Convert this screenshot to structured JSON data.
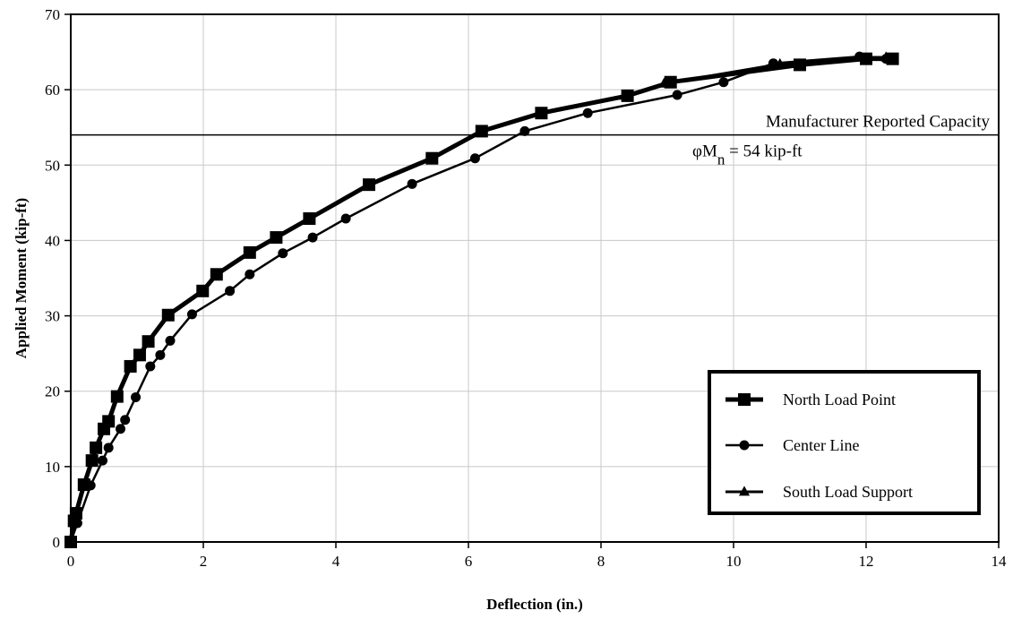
{
  "chart_data": {
    "type": "line",
    "xlabel": "Deflection (in.)",
    "ylabel": "Applied Moment (kip-ft)",
    "xlim": [
      0,
      14
    ],
    "ylim": [
      0,
      70
    ],
    "xticks": [
      "0",
      "2",
      "4",
      "6",
      "8",
      "10",
      "12",
      "14"
    ],
    "yticks": [
      "0",
      "10",
      "20",
      "30",
      "40",
      "50",
      "60",
      "70"
    ],
    "grid": true,
    "legend_position": "bottom-right",
    "series": [
      {
        "name": "North Load Point",
        "marker": "square",
        "x": [
          0,
          0.05,
          0.08,
          0.2,
          0.32,
          0.38,
          0.5,
          0.57,
          0.7,
          0.9,
          1.04,
          1.17,
          1.47,
          1.99,
          2.2,
          2.7,
          3.1,
          3.6,
          4.5,
          5.45,
          6.2,
          7.1,
          8.4,
          9.05,
          11.0,
          12.0,
          12.4
        ],
        "y": [
          0,
          2.8,
          3.8,
          7.6,
          10.8,
          12.5,
          15.0,
          16.0,
          19.3,
          23.3,
          24.8,
          26.6,
          30.1,
          33.3,
          35.5,
          38.4,
          40.4,
          42.9,
          47.4,
          50.9,
          54.5,
          56.9,
          59.2,
          61.0,
          63.3,
          64.1,
          64.1
        ]
      },
      {
        "name": "Center Line",
        "marker": "circle",
        "x": [
          0,
          0.1,
          0.3,
          0.48,
          0.57,
          0.75,
          0.82,
          0.98,
          1.2,
          1.35,
          1.5,
          1.83,
          2.4,
          2.7,
          3.2,
          3.65,
          4.15,
          5.15,
          6.1,
          6.85,
          7.8,
          9.15,
          9.85,
          10.6,
          11.9,
          12.3
        ],
        "y": [
          0,
          2.5,
          7.5,
          10.8,
          12.5,
          15.0,
          16.2,
          19.2,
          23.3,
          24.8,
          26.7,
          30.2,
          33.3,
          35.5,
          38.3,
          40.4,
          42.9,
          47.5,
          50.9,
          54.5,
          56.9,
          59.3,
          61.0,
          63.5,
          64.4,
          64.1
        ]
      },
      {
        "name": "South Load Support",
        "marker": "triangle",
        "x": [
          0,
          0.05,
          0.08,
          0.2,
          0.32,
          0.38,
          0.5,
          0.57,
          0.7,
          0.9,
          1.04,
          1.17,
          1.47,
          1.99,
          2.2,
          2.7,
          3.1,
          3.6,
          4.5,
          5.45,
          6.2,
          7.1,
          8.35,
          8.95,
          10.7,
          11.9,
          12.3
        ],
        "y": [
          0,
          2.8,
          3.8,
          7.6,
          10.8,
          12.5,
          15.0,
          16.0,
          19.3,
          23.3,
          24.8,
          26.6,
          30.1,
          33.3,
          35.5,
          38.4,
          40.4,
          42.9,
          47.4,
          50.9,
          54.5,
          56.9,
          59.2,
          60.8,
          63.4,
          64.3,
          64.3
        ]
      }
    ],
    "reference_line": {
      "y": 54,
      "label_line1": "Manufacturer Reported Capacity",
      "label_phi": "φM",
      "label_sub": "n",
      "label_rest": " = 54 kip-ft"
    }
  }
}
